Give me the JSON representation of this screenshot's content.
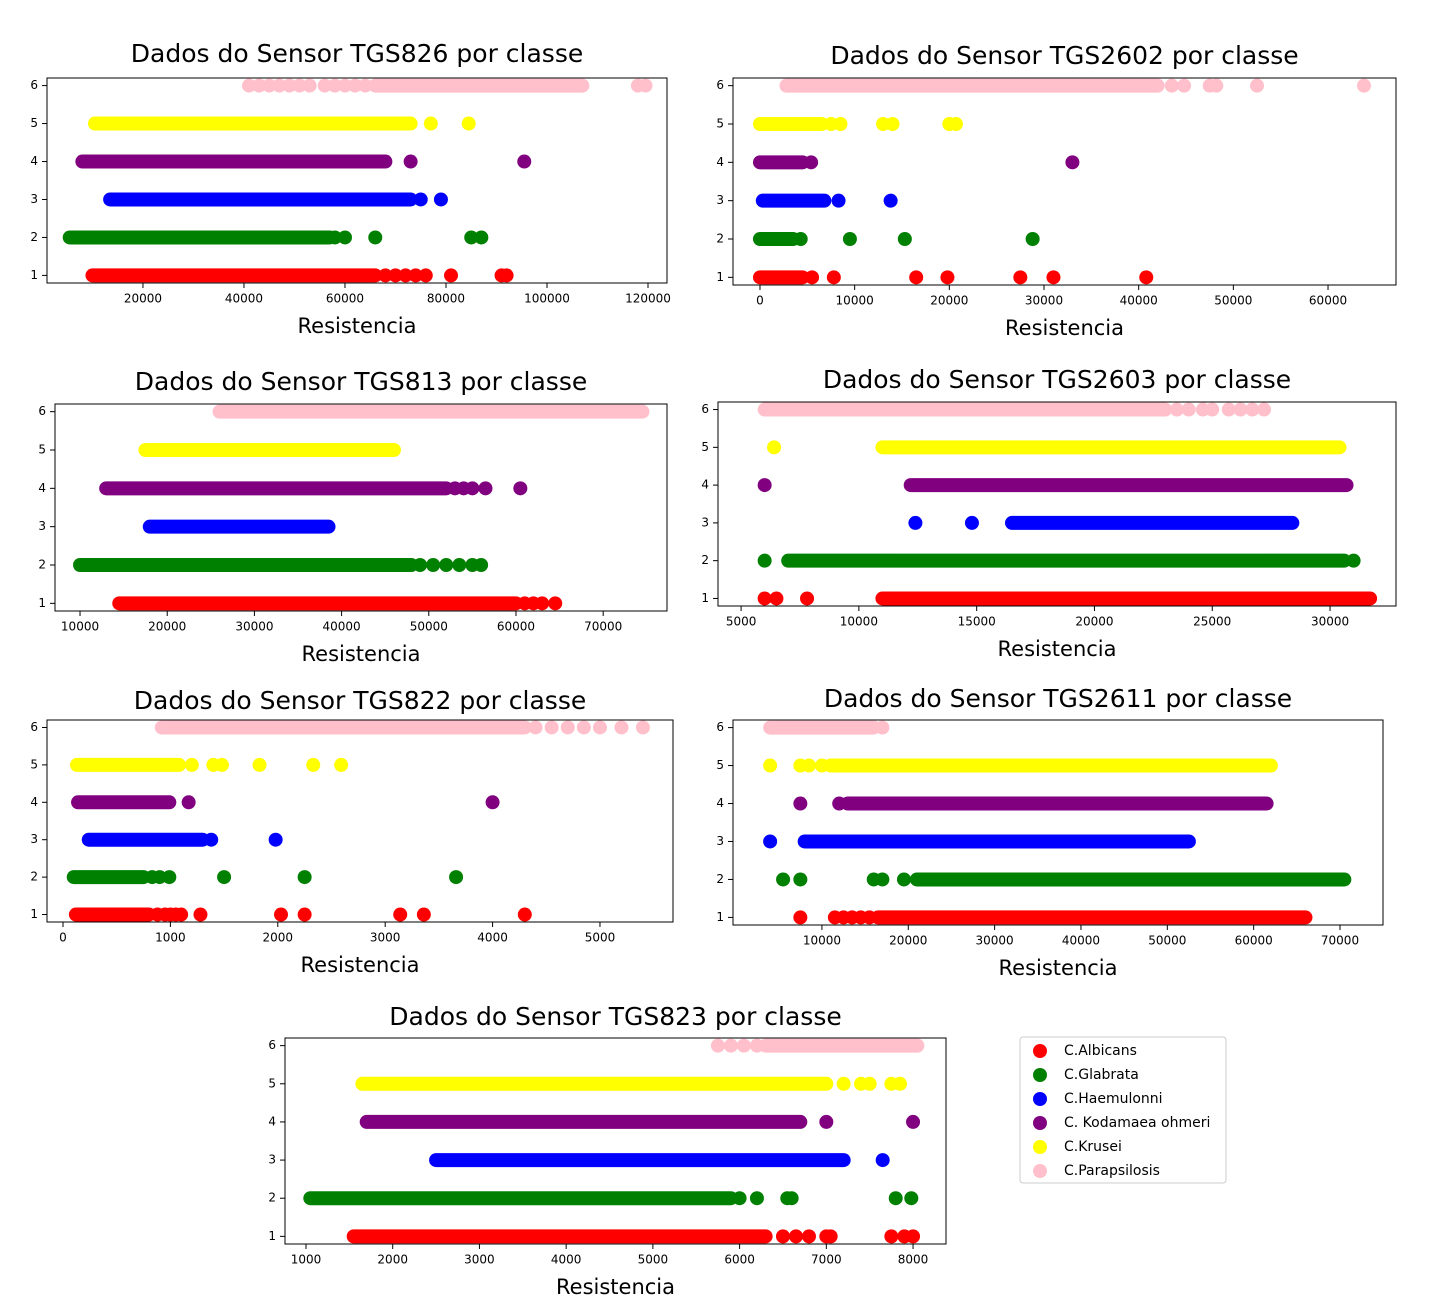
{
  "chart_data": [
    {
      "type": "scatter",
      "title": "Dados do Sensor TGS826 por classe",
      "xlabel": "Resistencia",
      "xlim": [
        1000,
        123760
      ],
      "ylim": [
        0.8,
        6.2
      ],
      "xticks": [
        20000,
        40000,
        60000,
        80000,
        100000,
        120000
      ],
      "yticks": [
        1,
        2,
        3,
        4,
        5,
        6
      ],
      "series": [
        {
          "color": "#ff0000",
          "y": 1,
          "ranges": [
            [
              10000,
              66000
            ]
          ],
          "x": [
            68000,
            70000,
            72000,
            74000,
            76000,
            81000,
            91000,
            92000
          ]
        },
        {
          "color": "#008000",
          "y": 2,
          "ranges": [
            [
              5500,
              57000
            ]
          ],
          "x": [
            58000,
            60000,
            66000,
            85000,
            87000
          ]
        },
        {
          "color": "#0000ff",
          "y": 3,
          "ranges": [
            [
              13500,
              73000
            ]
          ],
          "x": [
            75000,
            79000
          ]
        },
        {
          "color": "#800080",
          "y": 4,
          "ranges": [
            [
              8000,
              68000
            ]
          ],
          "x": [
            73000,
            95500
          ]
        },
        {
          "color": "#ffff00",
          "y": 5,
          "ranges": [
            [
              10500,
              73000
            ]
          ],
          "x": [
            77000,
            84500
          ]
        },
        {
          "color": "#ffc0cb",
          "y": 6,
          "ranges": [
            [
              66000,
              107000
            ]
          ],
          "x": [
            41000,
            43000,
            45000,
            47000,
            49000,
            51000,
            53000,
            56000,
            58000,
            60000,
            62000,
            64000,
            118000,
            119500
          ]
        }
      ]
    },
    {
      "type": "scatter",
      "title": "Dados do Sensor TGS2602 por classe",
      "xlabel": "Resistencia",
      "xlim": [
        -2850,
        67180
      ],
      "ylim": [
        0.8,
        6.2
      ],
      "xticks": [
        0,
        10000,
        20000,
        30000,
        40000,
        50000,
        60000
      ],
      "yticks": [
        1,
        2,
        3,
        4,
        5,
        6
      ],
      "series": [
        {
          "color": "#ff0000",
          "y": 1,
          "ranges": [
            [
              0,
              4500
            ]
          ],
          "x": [
            5500,
            7800,
            16500,
            19800,
            27500,
            31000,
            40800
          ]
        },
        {
          "color": "#008000",
          "y": 2,
          "ranges": [
            [
              0,
              3500
            ]
          ],
          "x": [
            4300,
            9500,
            15300,
            28800
          ]
        },
        {
          "color": "#0000ff",
          "y": 3,
          "ranges": [
            [
              300,
              6800
            ]
          ],
          "x": [
            8300,
            13800
          ]
        },
        {
          "color": "#800080",
          "y": 4,
          "ranges": [
            [
              0,
              4500
            ]
          ],
          "x": [
            5400,
            33000
          ]
        },
        {
          "color": "#ffff00",
          "y": 5,
          "ranges": [
            [
              0,
              6500
            ]
          ],
          "x": [
            7500,
            8500,
            13000,
            14000,
            20000,
            20700
          ]
        },
        {
          "color": "#ffc0cb",
          "y": 6,
          "ranges": [
            [
              2800,
              42000
            ]
          ],
          "x": [
            43500,
            44800,
            47500,
            48200,
            52500,
            63800
          ]
        }
      ]
    },
    {
      "type": "scatter",
      "title": "Dados do Sensor TGS813 por classe",
      "xlabel": "Resistencia",
      "xlim": [
        7130,
        77320
      ],
      "ylim": [
        0.8,
        6.2
      ],
      "xticks": [
        10000,
        20000,
        30000,
        40000,
        50000,
        60000,
        70000
      ],
      "yticks": [
        1,
        2,
        3,
        4,
        5,
        6
      ],
      "series": [
        {
          "color": "#ff0000",
          "y": 1,
          "ranges": [
            [
              14500,
              60000
            ]
          ],
          "x": [
            61000,
            62000,
            63000,
            64500
          ]
        },
        {
          "color": "#008000",
          "y": 2,
          "ranges": [
            [
              10000,
              48000
            ]
          ],
          "x": [
            49000,
            50500,
            52000,
            53500,
            55000,
            56000
          ]
        },
        {
          "color": "#0000ff",
          "y": 3,
          "ranges": [
            [
              18000,
              38500
            ]
          ],
          "x": []
        },
        {
          "color": "#800080",
          "y": 4,
          "ranges": [
            [
              13000,
              52000
            ]
          ],
          "x": [
            53000,
            54000,
            55000,
            56500,
            60500
          ]
        },
        {
          "color": "#ffff00",
          "y": 5,
          "ranges": [
            [
              17500,
              46000
            ]
          ],
          "x": []
        },
        {
          "color": "#ffc0cb",
          "y": 6,
          "ranges": [
            [
              26000,
              74500
            ]
          ],
          "x": []
        }
      ]
    },
    {
      "type": "scatter",
      "title": "Dados do Sensor TGS2603 por classe",
      "xlabel": "Resistencia",
      "xlim": [
        4020,
        32800
      ],
      "ylim": [
        0.8,
        6.2
      ],
      "xticks": [
        5000,
        10000,
        15000,
        20000,
        25000,
        30000
      ],
      "yticks": [
        1,
        2,
        3,
        4,
        5,
        6
      ],
      "series": [
        {
          "color": "#ff0000",
          "y": 1,
          "ranges": [
            [
              11000,
              31700
            ]
          ],
          "x": [
            6000,
            6500,
            7800
          ]
        },
        {
          "color": "#008000",
          "y": 2,
          "ranges": [
            [
              7000,
              30600
            ]
          ],
          "x": [
            6000,
            31000
          ]
        },
        {
          "color": "#0000ff",
          "y": 3,
          "ranges": [
            [
              16500,
              28400
            ]
          ],
          "x": [
            12400,
            14800
          ]
        },
        {
          "color": "#800080",
          "y": 4,
          "ranges": [
            [
              12200,
              30700
            ]
          ],
          "x": [
            6000
          ]
        },
        {
          "color": "#ffff00",
          "y": 5,
          "ranges": [
            [
              11000,
              30400
            ]
          ],
          "x": [
            6400
          ]
        },
        {
          "color": "#ffc0cb",
          "y": 6,
          "ranges": [
            [
              6000,
              23000
            ]
          ],
          "x": [
            23500,
            24000,
            24600,
            25000,
            25700,
            26200,
            26700,
            27200
          ]
        }
      ]
    },
    {
      "type": "scatter",
      "title": "Dados do Sensor TGS822 por classe",
      "xlabel": "Resistencia",
      "xlim": [
        -149,
        5680
      ],
      "ylim": [
        0.8,
        6.2
      ],
      "xticks": [
        0,
        1000,
        2000,
        3000,
        4000,
        5000
      ],
      "yticks": [
        1,
        2,
        3,
        4,
        5,
        6
      ],
      "series": [
        {
          "color": "#ff0000",
          "y": 1,
          "ranges": [
            [
              120,
              800
            ]
          ],
          "x": [
            880,
            950,
            1000,
            1050,
            1100,
            1280,
            2030,
            2250,
            3140,
            3360,
            4300
          ]
        },
        {
          "color": "#008000",
          "y": 2,
          "ranges": [
            [
              100,
              750
            ]
          ],
          "x": [
            830,
            900,
            990,
            1500,
            2250,
            3660
          ]
        },
        {
          "color": "#0000ff",
          "y": 3,
          "ranges": [
            [
              240,
              1300
            ]
          ],
          "x": [
            1380,
            1980
          ]
        },
        {
          "color": "#800080",
          "y": 4,
          "ranges": [
            [
              140,
              990
            ]
          ],
          "x": [
            1170,
            4000
          ]
        },
        {
          "color": "#ffff00",
          "y": 5,
          "ranges": [
            [
              130,
              1080
            ]
          ],
          "x": [
            1200,
            1400,
            1480,
            1830,
            2330,
            2590
          ]
        },
        {
          "color": "#ffc0cb",
          "y": 6,
          "ranges": [
            [
              920,
              4300
            ]
          ],
          "x": [
            4400,
            4550,
            4700,
            4850,
            5000,
            5200,
            5400
          ]
        }
      ]
    },
    {
      "type": "scatter",
      "title": "Dados do Sensor TGS2611 por classe",
      "xlabel": "Resistencia",
      "xlim": [
        -300,
        74980
      ],
      "ylim": [
        0.8,
        6.2
      ],
      "xticks": [
        10000,
        20000,
        30000,
        40000,
        50000,
        60000,
        70000
      ],
      "yticks": [
        1,
        2,
        3,
        4,
        5,
        6
      ],
      "series": [
        {
          "color": "#ff0000",
          "y": 1,
          "ranges": [
            [
              16500,
              66000
            ]
          ],
          "x": [
            7500,
            11500,
            12500,
            13500,
            14500,
            15500
          ]
        },
        {
          "color": "#008000",
          "y": 2,
          "ranges": [
            [
              21000,
              70500
            ]
          ],
          "x": [
            5500,
            7500,
            16000,
            17000,
            19500
          ]
        },
        {
          "color": "#0000ff",
          "y": 3,
          "ranges": [
            [
              8000,
              52500
            ]
          ],
          "x": [
            4000
          ]
        },
        {
          "color": "#800080",
          "y": 4,
          "ranges": [
            [
              13000,
              61500
            ]
          ],
          "x": [
            7500,
            12000
          ]
        },
        {
          "color": "#ffff00",
          "y": 5,
          "ranges": [
            [
              11000,
              62000
            ]
          ],
          "x": [
            4000,
            7500,
            8500,
            10000
          ]
        },
        {
          "color": "#ffc0cb",
          "y": 6,
          "ranges": [
            [
              4000,
              16000
            ]
          ],
          "x": [
            17000
          ]
        }
      ]
    },
    {
      "type": "scatter",
      "title": "Dados do Sensor TGS823 por classe",
      "xlabel": "Resistencia",
      "xlim": [
        758,
        8380
      ],
      "ylim": [
        0.8,
        6.2
      ],
      "xticks": [
        1000,
        2000,
        3000,
        4000,
        5000,
        6000,
        7000,
        8000
      ],
      "yticks": [
        1,
        2,
        3,
        4,
        5,
        6
      ],
      "series": [
        {
          "color": "#ff0000",
          "y": 1,
          "ranges": [
            [
              1550,
              6300
            ]
          ],
          "x": [
            6500,
            6650,
            6800,
            7000,
            7050,
            7750,
            7900,
            8000
          ]
        },
        {
          "color": "#008000",
          "y": 2,
          "ranges": [
            [
              1050,
              5900
            ]
          ],
          "x": [
            6000,
            6200,
            6550,
            6600,
            7800,
            7980
          ]
        },
        {
          "color": "#0000ff",
          "y": 3,
          "ranges": [
            [
              2500,
              7200
            ]
          ],
          "x": [
            7650
          ]
        },
        {
          "color": "#800080",
          "y": 4,
          "ranges": [
            [
              1700,
              6700
            ]
          ],
          "x": [
            7000,
            8000
          ]
        },
        {
          "color": "#ffff00",
          "y": 5,
          "ranges": [
            [
              1650,
              7000
            ]
          ],
          "x": [
            7200,
            7400,
            7500,
            7750,
            7850
          ]
        },
        {
          "color": "#ffc0cb",
          "y": 6,
          "ranges": [
            [
              6300,
              8050
            ]
          ],
          "x": [
            5750,
            5900,
            6050,
            6200
          ]
        }
      ]
    }
  ],
  "legend": {
    "entries": [
      {
        "name": "C.Albicans",
        "color": "#ff0000"
      },
      {
        "name": "C.Glabrata",
        "color": "#008000"
      },
      {
        "name": "C.Haemulonni",
        "color": "#0000ff"
      },
      {
        "name": "C. Kodamaea ohmeri",
        "color": "#800080"
      },
      {
        "name": "C.Krusei",
        "color": "#ffff00"
      },
      {
        "name": "C.Parapsilosis",
        "color": "#ffc0cb"
      }
    ]
  }
}
